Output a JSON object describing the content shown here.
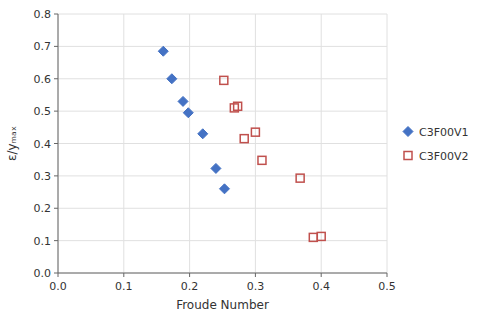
{
  "chart_data": {
    "type": "scatter",
    "xlabel": "Froude Number",
    "ylabel": "ε/yₘₐₓ",
    "xlim": [
      0.0,
      0.5
    ],
    "ylim": [
      0.0,
      0.8
    ],
    "xticks": [
      {
        "value": 0.0,
        "label": "0.0"
      },
      0.1,
      0.2,
      0.3,
      0.4,
      0.5
    ],
    "yticks": [
      {
        "value": 0.0,
        "label": "0.0"
      },
      0.1,
      0.2,
      0.3,
      0.4,
      0.5,
      0.6,
      0.7,
      0.8
    ],
    "grid": true,
    "legend": "right",
    "series": [
      {
        "name": "C3F00V1",
        "color": "#4472C4",
        "marker": "diamond",
        "x": [
          0.16,
          0.173,
          0.19,
          0.198,
          0.22,
          0.24,
          0.253
        ],
        "values": [
          0.685,
          0.6,
          0.53,
          0.495,
          0.43,
          0.323,
          0.26
        ]
      },
      {
        "name": "C3F00V2",
        "color": "#C0504D",
        "marker": "open-square",
        "x": [
          0.252,
          0.268,
          0.273,
          0.283,
          0.3,
          0.31,
          0.368,
          0.388,
          0.4
        ],
        "values": [
          0.595,
          0.51,
          0.515,
          0.415,
          0.435,
          0.348,
          0.293,
          0.11,
          0.113
        ]
      }
    ]
  }
}
